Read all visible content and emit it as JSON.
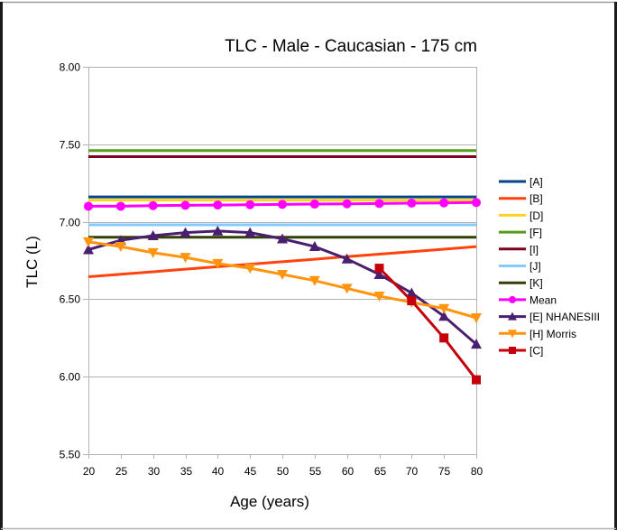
{
  "chart_data": {
    "type": "line",
    "title": "TLC - Male - Caucasian - 175 cm",
    "xlabel": "Age (years)",
    "ylabel": "TLC (L)",
    "xlim": [
      20,
      80
    ],
    "ylim": [
      5.5,
      8.0
    ],
    "x_ticks": [
      "20",
      "25",
      "30",
      "35",
      "40",
      "45",
      "50",
      "55",
      "60",
      "65",
      "70",
      "75",
      "80"
    ],
    "y_ticks": [
      "5.50",
      "6.00",
      "6.50",
      "7.00",
      "7.50",
      "8.00"
    ],
    "grid": "horizontal",
    "legend_position": "right",
    "x": [
      20,
      25,
      30,
      35,
      40,
      45,
      50,
      55,
      60,
      65,
      70,
      75,
      80
    ],
    "series": [
      {
        "name": "[A]",
        "color": "#004586",
        "marker": "none",
        "values": [
          7.16,
          7.16,
          7.16,
          7.16,
          7.16,
          7.16,
          7.16,
          7.16,
          7.16,
          7.16,
          7.16,
          7.16,
          7.16
        ]
      },
      {
        "name": "[B]",
        "color": "#ff420e",
        "marker": "none",
        "values": [
          6.645,
          6.661,
          6.677,
          6.694,
          6.71,
          6.726,
          6.742,
          6.758,
          6.775,
          6.791,
          6.807,
          6.823,
          6.84
        ]
      },
      {
        "name": "[D]",
        "color": "#ffd320",
        "marker": "none",
        "values": [
          7.14,
          7.14,
          7.14,
          7.14,
          7.14,
          7.14,
          7.14,
          7.14,
          7.14,
          7.14,
          7.14,
          7.14,
          7.14
        ]
      },
      {
        "name": "[F]",
        "color": "#579d1c",
        "marker": "none",
        "values": [
          7.46,
          7.46,
          7.46,
          7.46,
          7.46,
          7.46,
          7.46,
          7.46,
          7.46,
          7.46,
          7.46,
          7.46,
          7.46
        ]
      },
      {
        "name": "[I]",
        "color": "#7e0021",
        "marker": "none",
        "values": [
          7.42,
          7.42,
          7.42,
          7.42,
          7.42,
          7.42,
          7.42,
          7.42,
          7.42,
          7.42,
          7.42,
          7.42,
          7.42
        ]
      },
      {
        "name": "[J]",
        "color": "#83caff",
        "marker": "none",
        "values": [
          6.98,
          6.98,
          6.98,
          6.98,
          6.98,
          6.98,
          6.98,
          6.98,
          6.98,
          6.98,
          6.98,
          6.98,
          6.98
        ]
      },
      {
        "name": "[K]",
        "color": "#314004",
        "marker": "none",
        "values": [
          6.9,
          6.9,
          6.9,
          6.9,
          6.9,
          6.9,
          6.9,
          6.9,
          6.9,
          6.9,
          6.9,
          6.9,
          6.9
        ]
      },
      {
        "name": "Mean",
        "color": "#ff00ff",
        "marker": "circle",
        "values": [
          7.1,
          7.1,
          7.104,
          7.106,
          7.108,
          7.11,
          7.112,
          7.114,
          7.116,
          7.118,
          7.12,
          7.122,
          7.124
        ]
      },
      {
        "name": "[E] NHANESIII",
        "color": "#4b1f6f",
        "marker": "triangle-up",
        "values": [
          6.82,
          6.88,
          6.91,
          6.93,
          6.94,
          6.93,
          6.89,
          6.84,
          6.76,
          6.66,
          6.54,
          6.39,
          6.21
        ]
      },
      {
        "name": "[H] Morris",
        "color": "#ff950e",
        "marker": "triangle-down",
        "values": [
          6.87,
          6.84,
          6.8,
          6.77,
          6.73,
          6.7,
          6.66,
          6.62,
          6.57,
          6.52,
          6.48,
          6.44,
          6.38
        ]
      },
      {
        "name": "[C]",
        "color": "#c5000b",
        "marker": "square",
        "values": [
          null,
          null,
          null,
          null,
          null,
          null,
          null,
          null,
          null,
          6.7,
          6.49,
          6.25,
          5.98
        ]
      }
    ]
  }
}
